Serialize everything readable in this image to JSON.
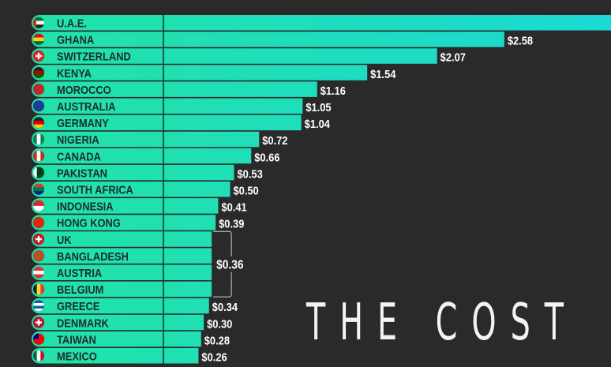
{
  "chart_data": {
    "type": "bar",
    "orientation": "horizontal",
    "title": "THE COST",
    "value_prefix": "$",
    "categories": [
      "U.A.E.",
      "GHANA",
      "SWITZERLAND",
      "KENYA",
      "MOROCCO",
      "AUSTRALIA",
      "GERMANY",
      "NIGERIA",
      "CANADA",
      "PAKISTAN",
      "SOUTH AFRICA",
      "INDONESIA",
      "HONG KONG",
      "UK",
      "BANGLADESH",
      "AUSTRIA",
      "BELGIUM",
      "GREECE",
      "DENMARK",
      "TAIWAN",
      "MEXICO"
    ],
    "values": [
      null,
      2.58,
      2.07,
      1.54,
      1.16,
      1.05,
      1.04,
      0.72,
      0.66,
      0.53,
      0.5,
      0.41,
      0.39,
      0.36,
      0.36,
      0.36,
      0.36,
      0.34,
      0.3,
      0.28,
      0.26
    ],
    "labels": [
      "",
      "$2.58",
      "$2.07",
      "$1.54",
      "$1.16",
      "$1.05",
      "$1.04",
      "$0.72",
      "$0.66",
      "$0.53",
      "$0.50",
      "$0.41",
      "$0.39",
      "",
      "",
      "",
      "",
      "$0.34",
      "$0.30",
      "$0.28",
      "$0.26"
    ],
    "group_label": {
      "text": "$0.36",
      "members": [
        "UK",
        "BANGLADESH",
        "AUSTRIA",
        "BELGIUM"
      ]
    },
    "flags": [
      {
        "icon": "uae-flag-icon",
        "colors": [
          "#00732f",
          "#ffffff",
          "#222222"
        ],
        "side": "#e0262c"
      },
      {
        "icon": "ghana-flag-icon",
        "colors": [
          "#ce1126",
          "#fcd116",
          "#006b3f"
        ]
      },
      {
        "icon": "switzerland-flag-icon",
        "colors": [
          "#e4222c"
        ],
        "cross": "#ffffff"
      },
      {
        "icon": "kenya-flag-icon",
        "colors": [
          "#222222",
          "#bb0000",
          "#006600"
        ]
      },
      {
        "icon": "morocco-flag-icon",
        "colors": [
          "#c1272d"
        ]
      },
      {
        "icon": "australia-flag-icon",
        "colors": [
          "#1f3d9a"
        ]
      },
      {
        "icon": "germany-flag-icon",
        "colors": [
          "#222222",
          "#dd0000",
          "#ffce00"
        ]
      },
      {
        "icon": "nigeria-flag-icon",
        "colors": [
          "#008751",
          "#ffffff",
          "#008751"
        ],
        "vertical": true
      },
      {
        "icon": "canada-flag-icon",
        "colors": [
          "#d52b1e",
          "#ffffff",
          "#d52b1e"
        ],
        "vertical": true
      },
      {
        "icon": "pakistan-flag-icon",
        "colors": [
          "#ffffff",
          "#01411c",
          "#01411c"
        ],
        "vertical": true
      },
      {
        "icon": "south-africa-flag-icon",
        "colors": [
          "#de3831",
          "#007a4d",
          "#002395"
        ]
      },
      {
        "icon": "indonesia-flag-icon",
        "colors": [
          "#e4222c",
          "#ffffff"
        ]
      },
      {
        "icon": "hong-kong-flag-icon",
        "colors": [
          "#de2910"
        ]
      },
      {
        "icon": "uk-flag-icon",
        "colors": [
          "#cf142b"
        ],
        "cross": "#ffffff"
      },
      {
        "icon": "bangladesh-flag-icon",
        "colors": [
          "#b9502a"
        ]
      },
      {
        "icon": "austria-flag-icon",
        "colors": [
          "#ed2939",
          "#ffffff",
          "#ed2939"
        ]
      },
      {
        "icon": "belgium-flag-icon",
        "colors": [
          "#222222",
          "#fdda24",
          "#ef3340"
        ],
        "vertical": true
      },
      {
        "icon": "greece-flag-icon",
        "colors": [
          "#0d5eaf",
          "#ffffff",
          "#0d5eaf",
          "#ffffff"
        ]
      },
      {
        "icon": "denmark-flag-icon",
        "colors": [
          "#c8102e"
        ],
        "cross": "#ffffff"
      },
      {
        "icon": "taiwan-flag-icon",
        "colors": [
          "#fe0000"
        ],
        "canton": "#000095"
      },
      {
        "icon": "mexico-flag-icon",
        "colors": [
          "#006847",
          "#ffffff",
          "#ce1126"
        ],
        "vertical": true
      }
    ],
    "colors": {
      "bar_start": "#22e3a6",
      "bar_end": "#1bd8d2",
      "background": "#2a2a2a",
      "label_text": "#1d2b2b",
      "value_text": "#ffffff"
    }
  }
}
